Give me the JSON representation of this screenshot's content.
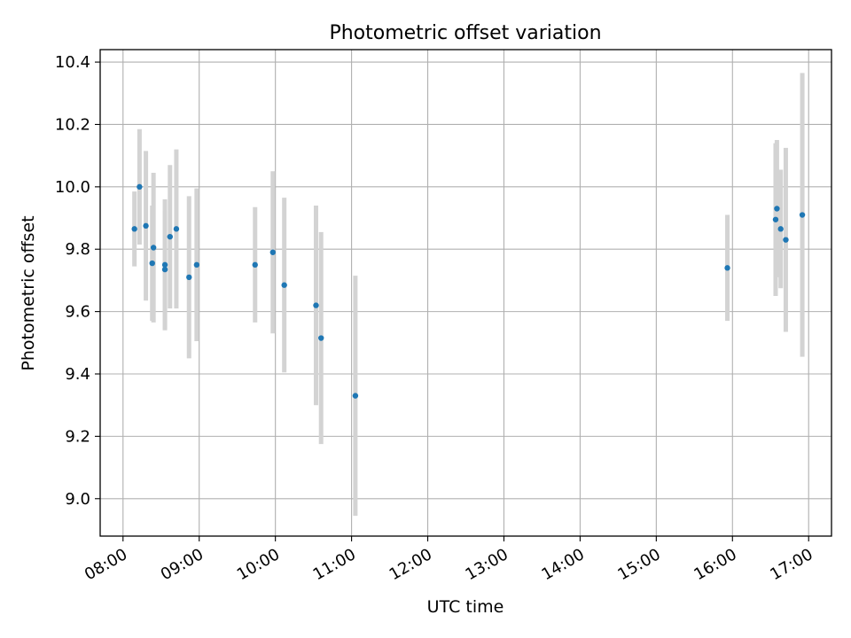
{
  "chart_data": {
    "type": "scatter",
    "title": "Photometric offset variation",
    "xlabel": "UTC time",
    "ylabel": "Photometric offset",
    "x_tick_labels": [
      "08:00",
      "09:00",
      "10:00",
      "11:00",
      "12:00",
      "13:00",
      "14:00",
      "15:00",
      "16:00",
      "17:00"
    ],
    "y_tick_labels": [
      "9.0",
      "9.2",
      "9.4",
      "9.6",
      "9.8",
      "10.0",
      "10.2",
      "10.4"
    ],
    "y_ticks": [
      9.0,
      9.2,
      9.4,
      9.6,
      9.8,
      10.0,
      10.2,
      10.4
    ],
    "xlim": [
      "07:42",
      "17:18"
    ],
    "ylim": [
      8.88,
      10.44
    ],
    "grid": true,
    "marker_color": "#1f77b4",
    "errorbar_color": "#d3d3d3",
    "series": [
      {
        "points": [
          {
            "x": "08:09",
            "y": 9.865,
            "yerr": 0.12
          },
          {
            "x": "08:13",
            "y": 10.0,
            "yerr": 0.185
          },
          {
            "x": "08:18",
            "y": 9.875,
            "yerr": 0.24
          },
          {
            "x": "08:23",
            "y": 9.755,
            "yerr": 0.185
          },
          {
            "x": "08:24",
            "y": 9.805,
            "yerr": 0.24
          },
          {
            "x": "08:33",
            "y": 9.75,
            "yerr": 0.21
          },
          {
            "x": "08:33",
            "y": 9.735,
            "yerr": 0.19
          },
          {
            "x": "08:37",
            "y": 9.84,
            "yerr": 0.23
          },
          {
            "x": "08:42",
            "y": 9.865,
            "yerr": 0.255
          },
          {
            "x": "08:52",
            "y": 9.71,
            "yerr": 0.26
          },
          {
            "x": "08:58",
            "y": 9.75,
            "yerr": 0.245
          },
          {
            "x": "09:44",
            "y": 9.75,
            "yerr": 0.185
          },
          {
            "x": "09:58",
            "y": 9.79,
            "yerr": 0.26
          },
          {
            "x": "10:07",
            "y": 9.685,
            "yerr": 0.28
          },
          {
            "x": "10:32",
            "y": 9.62,
            "yerr": 0.32
          },
          {
            "x": "10:36",
            "y": 9.515,
            "yerr": 0.34
          },
          {
            "x": "11:03",
            "y": 9.33,
            "yerr": 0.385
          },
          {
            "x": "15:56",
            "y": 9.74,
            "yerr": 0.17
          },
          {
            "x": "16:34",
            "y": 9.895,
            "yerr": 0.245
          },
          {
            "x": "16:35",
            "y": 9.93,
            "yerr": 0.22
          },
          {
            "x": "16:38",
            "y": 9.865,
            "yerr": 0.19
          },
          {
            "x": "16:42",
            "y": 9.83,
            "yerr": 0.295
          },
          {
            "x": "16:55",
            "y": 9.91,
            "yerr": 0.455
          }
        ]
      }
    ]
  }
}
